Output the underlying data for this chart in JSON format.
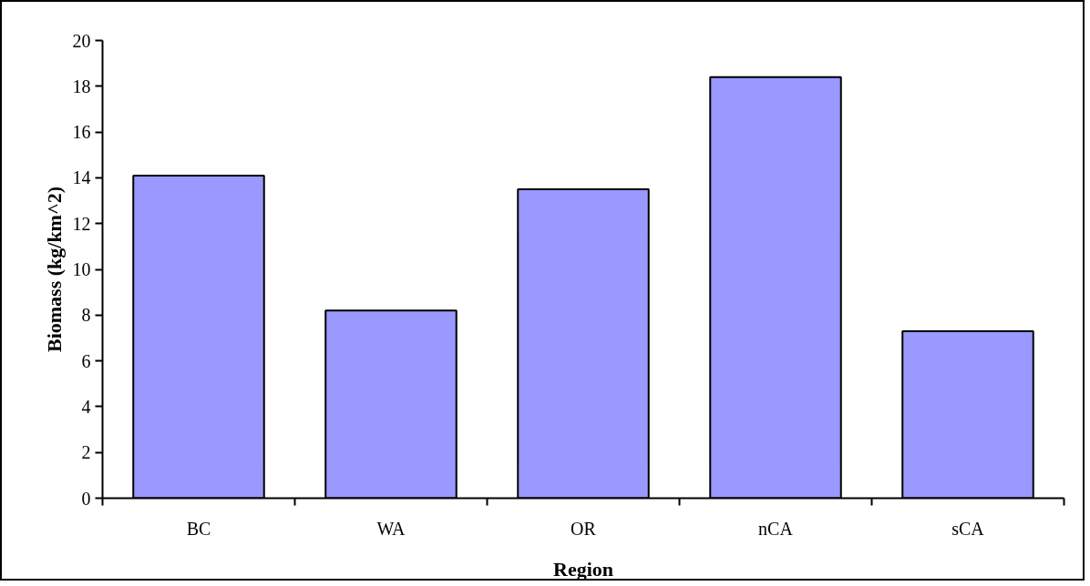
{
  "chart_data": {
    "type": "bar",
    "xlabel": "Region",
    "ylabel": "Biomass (kg/km^2)",
    "categories": [
      "BC",
      "WA",
      "OR",
      "nCA",
      "sCA"
    ],
    "values": [
      14.1,
      8.2,
      13.5,
      18.4,
      7.3
    ],
    "color": "#9999ff",
    "ylim": [
      0,
      20
    ],
    "yticks": [
      0,
      2,
      4,
      6,
      8,
      10,
      12,
      14,
      16,
      18,
      20
    ],
    "grid": false
  }
}
